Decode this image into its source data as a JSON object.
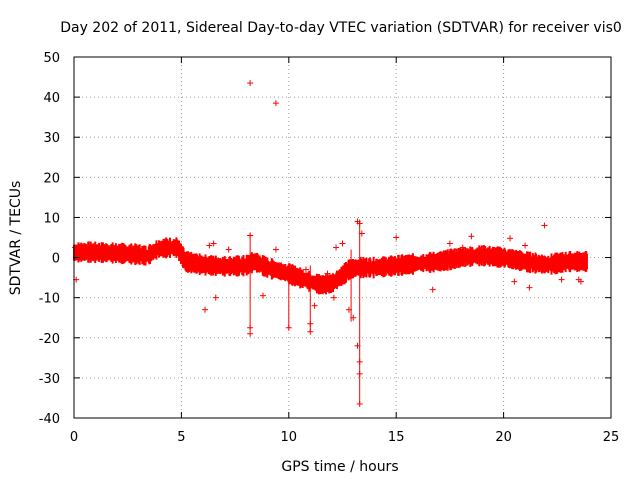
{
  "chart_data": {
    "type": "scatter",
    "title": "Day 202 of 2011, Sidereal Day-to-day VTEC variation (SDTVAR) for receiver vis0",
    "xlabel": "GPS time / hours",
    "ylabel": "SDTVAR / TECUs",
    "xlim": [
      0,
      25
    ],
    "ylim": [
      -40,
      50
    ],
    "xticks": [
      "0",
      "5",
      "10",
      "15",
      "20",
      "25"
    ],
    "yticks": [
      "50",
      "40",
      "30",
      "20",
      "10",
      "0",
      "-10",
      "-20",
      "-30",
      "-40"
    ],
    "grid": true,
    "marker": "+",
    "series_color": "#ff0000",
    "trend": [
      [
        0.0,
        1.2
      ],
      [
        0.5,
        1.4
      ],
      [
        1.0,
        1.3
      ],
      [
        2.0,
        1.1
      ],
      [
        3.0,
        0.8
      ],
      [
        3.4,
        0.4
      ],
      [
        3.9,
        2.1
      ],
      [
        4.3,
        2.4
      ],
      [
        4.8,
        2.5
      ],
      [
        5.2,
        -1.0
      ],
      [
        6.0,
        -1.8
      ],
      [
        7.0,
        -2.2
      ],
      [
        8.0,
        -2.0
      ],
      [
        8.4,
        -1.0
      ],
      [
        9.0,
        -2.5
      ],
      [
        10.0,
        -4.0
      ],
      [
        10.5,
        -5.0
      ],
      [
        11.0,
        -6.0
      ],
      [
        11.5,
        -6.8
      ],
      [
        12.0,
        -6.5
      ],
      [
        12.5,
        -4.5
      ],
      [
        12.8,
        -3.0
      ],
      [
        13.2,
        -2.5
      ],
      [
        14.0,
        -2.5
      ],
      [
        15.0,
        -2.0
      ],
      [
        16.0,
        -1.5
      ],
      [
        17.0,
        -1.0
      ],
      [
        18.0,
        0.0
      ],
      [
        19.0,
        0.5
      ],
      [
        20.0,
        0.0
      ],
      [
        21.0,
        -1.0
      ],
      [
        22.0,
        -1.8
      ],
      [
        23.0,
        -1.0
      ],
      [
        23.9,
        -1.0
      ]
    ],
    "band_spread": 1.8,
    "outliers": [
      [
        0.05,
        2.5
      ],
      [
        0.1,
        -5.5
      ],
      [
        8.2,
        43.5
      ],
      [
        9.4,
        38.5
      ],
      [
        8.2,
        5.5
      ],
      [
        8.2,
        -17.5
      ],
      [
        8.2,
        -19.0
      ],
      [
        9.4,
        2.0
      ],
      [
        10.0,
        -17.5
      ],
      [
        6.1,
        -13.0
      ],
      [
        6.6,
        -10.0
      ],
      [
        6.3,
        3.0
      ],
      [
        6.5,
        3.5
      ],
      [
        7.2,
        2.0
      ],
      [
        8.8,
        -9.5
      ],
      [
        11.0,
        -16.5
      ],
      [
        11.0,
        -18.5
      ],
      [
        11.2,
        -12.0
      ],
      [
        11.8,
        -4.0
      ],
      [
        13.2,
        9.0
      ],
      [
        13.3,
        8.5
      ],
      [
        13.3,
        -36.5
      ],
      [
        13.3,
        -29.0
      ],
      [
        13.3,
        -26.0
      ],
      [
        13.2,
        -22.0
      ],
      [
        13.0,
        -15.0
      ],
      [
        13.4,
        6.0
      ],
      [
        12.5,
        3.5
      ],
      [
        12.2,
        2.5
      ],
      [
        12.8,
        -13.0
      ],
      [
        15.0,
        5.0
      ],
      [
        16.7,
        -8.0
      ],
      [
        17.5,
        3.5
      ],
      [
        18.5,
        5.3
      ],
      [
        18.1,
        2.5
      ],
      [
        20.3,
        4.8
      ],
      [
        20.5,
        -6.0
      ],
      [
        21.0,
        3.0
      ],
      [
        21.2,
        -7.5
      ],
      [
        21.9,
        8.0
      ],
      [
        23.6,
        -6.0
      ],
      [
        23.5,
        -5.5
      ],
      [
        22.7,
        -5.5
      ],
      [
        14.9,
        -3.0
      ],
      [
        10.8,
        -3.0
      ],
      [
        12.1,
        -10.0
      ]
    ],
    "spikes": [
      [
        8.2,
        -18.0,
        6.0
      ],
      [
        13.3,
        -36.5,
        9.5
      ],
      [
        11.0,
        -18.5,
        -2.0
      ],
      [
        12.9,
        -16.0,
        2.0
      ],
      [
        10.0,
        -17.5,
        -4.0
      ]
    ]
  }
}
